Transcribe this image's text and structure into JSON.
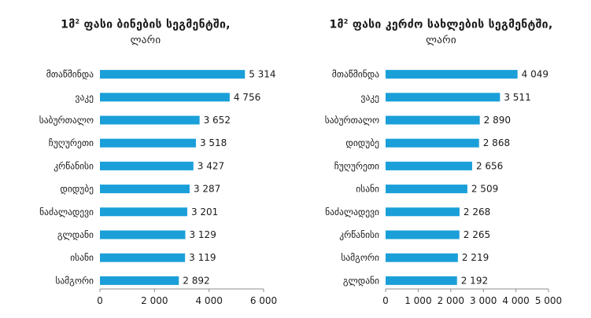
{
  "colors": {
    "bar": "#1a9fd9",
    "axis": "#8c8c8c",
    "text": "#1a1a1a"
  },
  "chart_data": [
    {
      "type": "bar",
      "orientation": "horizontal",
      "title_main": "1მ",
      "title_sup": "2",
      "title_rest": " ფასი ბინების სეგმენტში,",
      "subtitle": "ლარი",
      "categories": [
        "მთაწმინდა",
        "ვაკე",
        "საბურთალო",
        "ჩუღურეთი",
        "კრწანისი",
        "დიდუბე",
        "ნაძალადევი",
        "გლდანი",
        "ისანი",
        "სამგორი"
      ],
      "values": [
        5314,
        4756,
        3652,
        3518,
        3427,
        3287,
        3201,
        3129,
        3119,
        2892
      ],
      "value_labels": [
        "5 314",
        "4 756",
        "3 652",
        "3 518",
        "3 427",
        "3 287",
        "3 201",
        "3 129",
        "3 119",
        "2 892"
      ],
      "xlim": [
        0,
        6000
      ],
      "xticks": [
        0,
        2000,
        4000,
        6000
      ],
      "xtick_labels": [
        "0",
        "2 000",
        "4 000",
        "6 000"
      ],
      "grid": false
    },
    {
      "type": "bar",
      "orientation": "horizontal",
      "title_main": "1მ",
      "title_sup": "2",
      "title_rest": " ფასი კერძო სახლების სეგმენტში,",
      "subtitle": "ლარი",
      "categories": [
        "მთაწმინდა",
        "ვაკე",
        "საბურთალო",
        "დიდუბე",
        "ჩუღურეთი",
        "ისანი",
        "ნაძალადევი",
        "კრწანისი",
        "სამგორი",
        "გლდანი"
      ],
      "values": [
        4049,
        3511,
        2890,
        2868,
        2656,
        2509,
        2268,
        2265,
        2219,
        2192
      ],
      "value_labels": [
        "4 049",
        "3 511",
        "2 890",
        "2 868",
        "2 656",
        "2 509",
        "2 268",
        "2 265",
        "2 219",
        "2 192"
      ],
      "xlim": [
        0,
        5000
      ],
      "xticks": [
        0,
        1000,
        2000,
        3000,
        4000,
        5000
      ],
      "xtick_labels": [
        "0",
        "1 000",
        "2 000",
        "3 000",
        "4 000",
        "5 000"
      ],
      "grid": false
    }
  ]
}
